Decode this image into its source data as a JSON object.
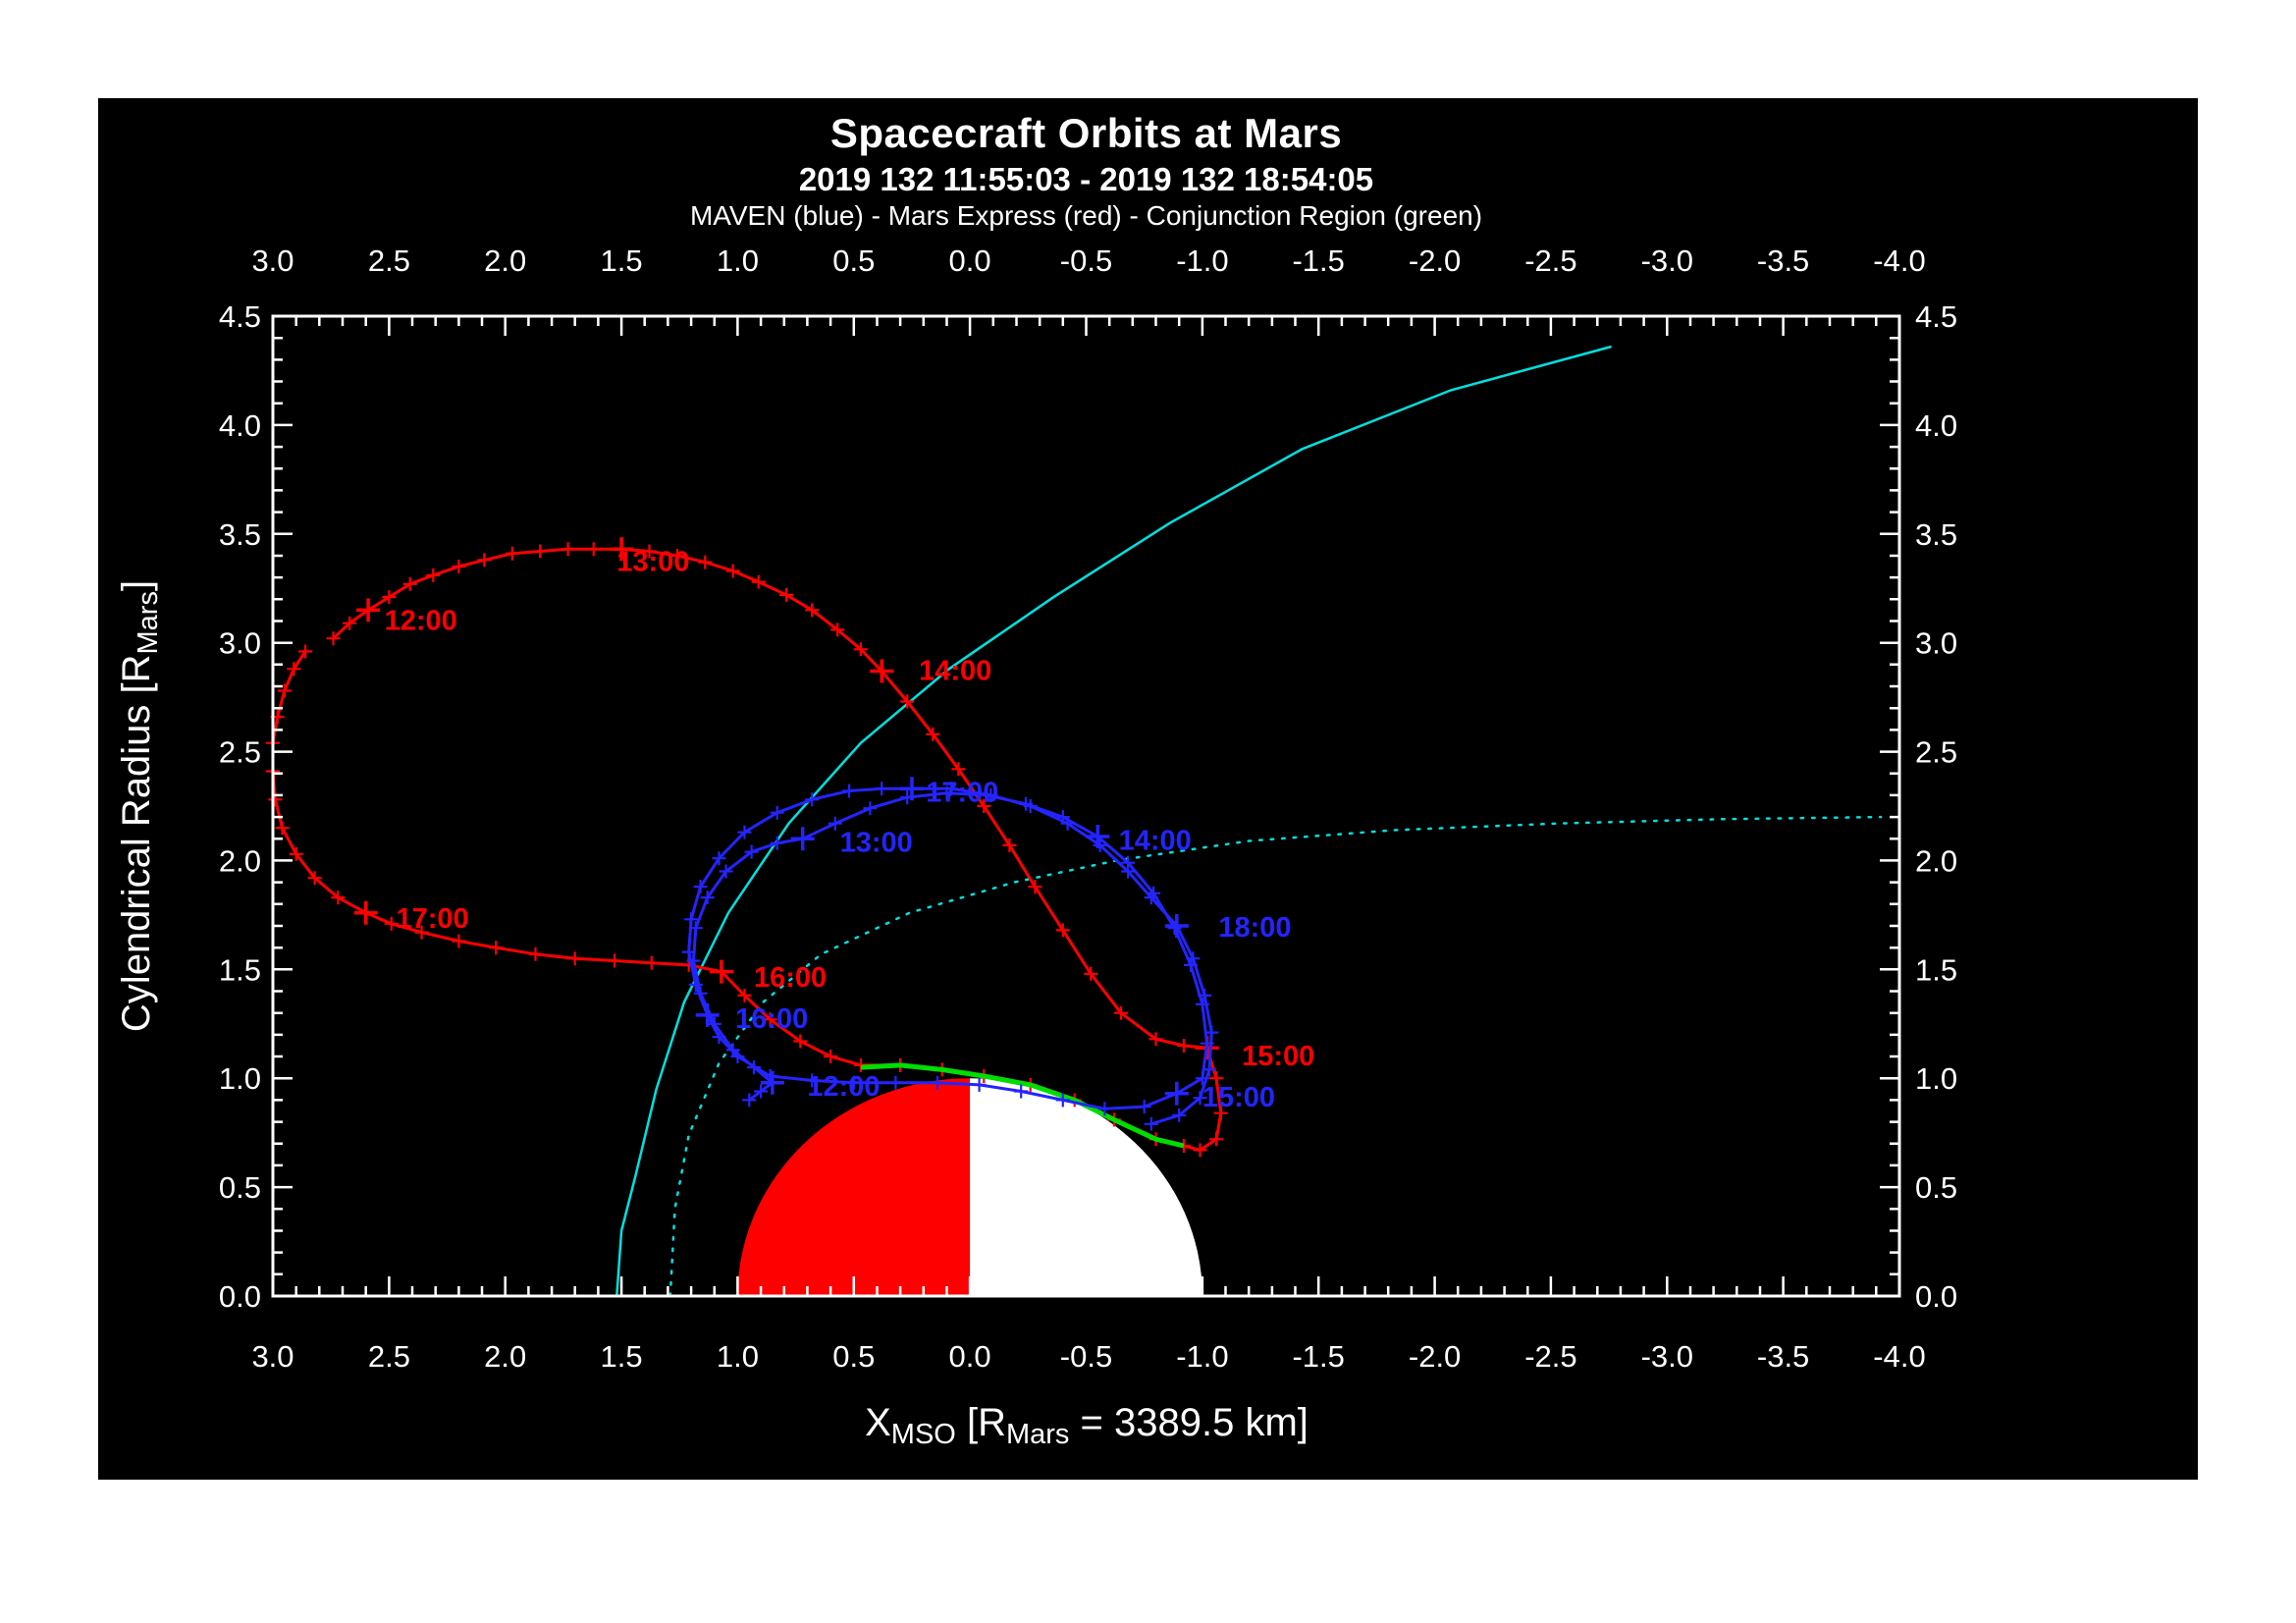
{
  "header": {
    "title": "Spacecraft Orbits at Mars",
    "subtitle": "2019 132 11:55:03 - 2019 132 18:54:05",
    "legend": "MAVEN (blue) - Mars Express (red) - Conjunction Region (green)"
  },
  "chart_data": {
    "type": "line",
    "title": "Spacecraft Orbits at Mars",
    "subtitle": "2019 132 11:55:03 - 2019 132 18:54:05",
    "legend": "MAVEN (blue) - Mars Express (red) - Conjunction Region (green)",
    "xlabel_parts": [
      {
        "t": "X"
      },
      {
        "t": "MSO",
        "sub": true
      },
      {
        "t": " [R"
      },
      {
        "t": "Mars",
        "sub": true
      },
      {
        "t": " = 3389.5 km]"
      }
    ],
    "ylabel_parts": [
      {
        "t": "Cylendrical Radius [R"
      },
      {
        "t": "Mars",
        "sub": true
      },
      {
        "t": "]"
      }
    ],
    "xlim": [
      3.0,
      -4.0
    ],
    "ylim": [
      0.0,
      4.5
    ],
    "xticks": [
      3.0,
      2.5,
      2.0,
      1.5,
      1.0,
      0.5,
      0.0,
      -0.5,
      -1.0,
      -1.5,
      -2.0,
      -2.5,
      -3.0,
      -3.5,
      -4.0
    ],
    "yticks": [
      0.0,
      0.5,
      1.0,
      1.5,
      2.0,
      2.5,
      3.0,
      3.5,
      4.0,
      4.5
    ],
    "minor_tick_step": 0.1,
    "grid": false,
    "background_color": "#000000",
    "axis_color": "#ffffff",
    "mars": {
      "center": [
        0,
        0
      ],
      "radius": 1.0,
      "dayside_color": "#ff0000",
      "nightside_color": "#ffffff"
    },
    "series": [
      {
        "name": "bow-shock",
        "color": "#00e0e0",
        "width": 2.5,
        "style": "solid",
        "markers": false,
        "points": [
          [
            1.52,
            0.0
          ],
          [
            1.5,
            0.3
          ],
          [
            1.44,
            0.55
          ],
          [
            1.35,
            0.95
          ],
          [
            1.23,
            1.35
          ],
          [
            1.04,
            1.76
          ],
          [
            0.78,
            2.17
          ],
          [
            0.47,
            2.54
          ],
          [
            0.09,
            2.88
          ],
          [
            -0.36,
            3.21
          ],
          [
            -0.86,
            3.55
          ],
          [
            -1.43,
            3.89
          ],
          [
            -2.07,
            4.16
          ],
          [
            -2.76,
            4.36
          ]
        ]
      },
      {
        "name": "magnetic-pileup-boundary",
        "color": "#00e0e0",
        "width": 2.5,
        "style": "dotted",
        "markers": false,
        "points": [
          [
            1.29,
            0.0
          ],
          [
            1.27,
            0.4
          ],
          [
            1.21,
            0.74
          ],
          [
            1.08,
            1.07
          ],
          [
            0.89,
            1.35
          ],
          [
            0.64,
            1.57
          ],
          [
            0.26,
            1.76
          ],
          [
            -0.19,
            1.9
          ],
          [
            -0.63,
            2.0
          ],
          [
            -1.2,
            2.09
          ],
          [
            -1.83,
            2.14
          ],
          [
            -2.53,
            2.17
          ],
          [
            -3.23,
            2.19
          ],
          [
            -3.92,
            2.2
          ]
        ]
      },
      {
        "name": "mars-express-orbit",
        "color": "#ff0000",
        "width": 3,
        "style": "solid",
        "markers": true,
        "points": [
          [
            2.74,
            3.02
          ],
          [
            2.67,
            3.09
          ],
          [
            2.59,
            3.15
          ],
          [
            2.5,
            3.21
          ],
          [
            2.41,
            3.27
          ],
          [
            2.31,
            3.31
          ],
          [
            2.2,
            3.35
          ],
          [
            2.09,
            3.38
          ],
          [
            1.97,
            3.41
          ],
          [
            1.85,
            3.42
          ],
          [
            1.73,
            3.43
          ],
          [
            1.62,
            3.43
          ],
          [
            1.5,
            3.43
          ],
          [
            1.38,
            3.42
          ],
          [
            1.26,
            3.4
          ],
          [
            1.14,
            3.37
          ],
          [
            1.02,
            3.33
          ],
          [
            0.91,
            3.28
          ],
          [
            0.79,
            3.22
          ],
          [
            0.68,
            3.15
          ],
          [
            0.57,
            3.06
          ],
          [
            0.47,
            2.97
          ],
          [
            0.38,
            2.87
          ],
          [
            0.27,
            2.73
          ],
          [
            0.16,
            2.58
          ],
          [
            0.05,
            2.42
          ],
          [
            -0.06,
            2.25
          ],
          [
            -0.17,
            2.07
          ],
          [
            -0.28,
            1.88
          ],
          [
            -0.4,
            1.68
          ],
          [
            -0.52,
            1.48
          ],
          [
            -0.65,
            1.3
          ],
          [
            -0.8,
            1.18
          ],
          [
            -0.92,
            1.15
          ],
          [
            -1.02,
            1.14
          ],
          [
            -1.06,
            1.0
          ],
          [
            -1.08,
            0.84
          ],
          [
            -1.06,
            0.72
          ],
          [
            -0.99,
            0.67
          ],
          [
            -0.92,
            0.69
          ],
          [
            -0.8,
            0.72
          ],
          [
            -0.62,
            0.81
          ],
          [
            -0.45,
            0.9
          ],
          [
            -0.26,
            0.97
          ],
          [
            -0.06,
            1.01
          ],
          [
            0.12,
            1.04
          ],
          [
            0.3,
            1.06
          ],
          [
            0.47,
            1.06
          ],
          [
            0.6,
            1.1
          ],
          [
            0.73,
            1.17
          ],
          [
            0.86,
            1.27
          ],
          [
            0.97,
            1.38
          ],
          [
            1.07,
            1.49
          ],
          [
            1.21,
            1.52
          ],
          [
            1.37,
            1.53
          ],
          [
            1.53,
            1.54
          ],
          [
            1.7,
            1.55
          ],
          [
            1.87,
            1.57
          ],
          [
            2.04,
            1.6
          ],
          [
            2.2,
            1.63
          ],
          [
            2.36,
            1.67
          ],
          [
            2.49,
            1.71
          ],
          [
            2.6,
            1.76
          ],
          [
            2.72,
            1.83
          ],
          [
            2.82,
            1.92
          ],
          [
            2.9,
            2.03
          ],
          [
            2.96,
            2.15
          ],
          [
            2.99,
            2.28
          ],
          [
            3.0,
            2.41
          ],
          [
            3.0,
            2.54
          ],
          [
            2.98,
            2.66
          ],
          [
            2.95,
            2.78
          ],
          [
            2.91,
            2.88
          ],
          [
            2.86,
            2.96
          ]
        ],
        "hours": [
          {
            "t": "12:00",
            "x": 2.59,
            "y": 3.15,
            "lx": 2.52,
            "ly": 3.06
          },
          {
            "t": "13:00",
            "x": 1.5,
            "y": 3.43,
            "lx": 1.52,
            "ly": 3.33
          },
          {
            "t": "14:00",
            "x": 0.38,
            "y": 2.87,
            "lx": 0.22,
            "ly": 2.83
          },
          {
            "t": "15:00",
            "x": -1.02,
            "y": 1.14,
            "lx": -1.17,
            "ly": 1.06
          },
          {
            "t": "16:00",
            "x": 1.07,
            "y": 1.49,
            "lx": 0.93,
            "ly": 1.42
          },
          {
            "t": "17:00",
            "x": 2.6,
            "y": 1.76,
            "lx": 2.47,
            "ly": 1.69
          }
        ]
      },
      {
        "name": "conjunction-region",
        "color": "#00dd00",
        "width": 5,
        "style": "solid",
        "markers": false,
        "points": [
          [
            0.47,
            1.05
          ],
          [
            0.3,
            1.06
          ],
          [
            0.12,
            1.04
          ],
          [
            -0.06,
            1.01
          ],
          [
            -0.26,
            0.97
          ],
          [
            -0.45,
            0.9
          ],
          [
            -0.62,
            0.81
          ],
          [
            -0.8,
            0.72
          ],
          [
            -0.92,
            0.69
          ]
        ]
      },
      {
        "name": "maven-orbit",
        "color": "#2424ff",
        "width": 3,
        "style": "solid",
        "markers": true,
        "points": [
          [
            0.95,
            0.9
          ],
          [
            0.9,
            0.94
          ],
          [
            0.85,
            0.98
          ],
          [
            0.93,
            1.05
          ],
          [
            1.02,
            1.13
          ],
          [
            1.1,
            1.25
          ],
          [
            1.16,
            1.39
          ],
          [
            1.19,
            1.54
          ],
          [
            1.18,
            1.69
          ],
          [
            1.13,
            1.83
          ],
          [
            1.05,
            1.95
          ],
          [
            0.94,
            2.04
          ],
          [
            0.83,
            2.08
          ],
          [
            0.72,
            2.1
          ],
          [
            0.58,
            2.17
          ],
          [
            0.43,
            2.24
          ],
          [
            0.27,
            2.29
          ],
          [
            0.1,
            2.31
          ],
          [
            -0.07,
            2.3
          ],
          [
            -0.24,
            2.26
          ],
          [
            -0.4,
            2.2
          ],
          [
            -0.55,
            2.11
          ],
          [
            -0.68,
            1.99
          ],
          [
            -0.79,
            1.85
          ],
          [
            -0.88,
            1.69
          ],
          [
            -0.95,
            1.52
          ],
          [
            -1.0,
            1.34
          ],
          [
            -1.02,
            1.16
          ],
          [
            -1.0,
            1.0
          ],
          [
            -0.89,
            0.93
          ],
          [
            -0.75,
            0.87
          ],
          [
            -0.58,
            0.86
          ],
          [
            -0.4,
            0.9
          ],
          [
            -0.22,
            0.94
          ],
          [
            -0.04,
            0.97
          ],
          [
            0.14,
            0.98
          ],
          [
            0.32,
            0.98
          ],
          [
            0.5,
            0.98
          ],
          [
            0.68,
            0.99
          ],
          [
            0.86,
            1.01
          ],
          [
            1.0,
            1.1
          ],
          [
            1.08,
            1.19
          ],
          [
            1.13,
            1.29
          ],
          [
            1.18,
            1.43
          ],
          [
            1.21,
            1.58
          ],
          [
            1.2,
            1.73
          ],
          [
            1.16,
            1.88
          ],
          [
            1.08,
            2.01
          ],
          [
            0.97,
            2.13
          ],
          [
            0.83,
            2.22
          ],
          [
            0.68,
            2.28
          ],
          [
            0.52,
            2.32
          ],
          [
            0.38,
            2.33
          ],
          [
            0.25,
            2.33
          ],
          [
            0.08,
            2.33
          ],
          [
            -0.09,
            2.3
          ],
          [
            -0.26,
            2.25
          ],
          [
            -0.42,
            2.17
          ],
          [
            -0.56,
            2.07
          ],
          [
            -0.68,
            1.95
          ],
          [
            -0.78,
            1.83
          ],
          [
            -0.89,
            1.7
          ],
          [
            -0.96,
            1.55
          ],
          [
            -1.01,
            1.38
          ],
          [
            -1.04,
            1.21
          ],
          [
            -1.03,
            1.04
          ],
          [
            -0.99,
            0.91
          ],
          [
            -0.9,
            0.83
          ],
          [
            -0.78,
            0.79
          ]
        ],
        "hours": [
          {
            "t": "12:00",
            "x": 0.85,
            "y": 0.98,
            "lx": 0.7,
            "ly": 0.92
          },
          {
            "t": "13:00",
            "x": 0.72,
            "y": 2.1,
            "lx": 0.56,
            "ly": 2.04
          },
          {
            "t": "14:00",
            "x": -0.55,
            "y": 2.11,
            "lx": -0.64,
            "ly": 2.05
          },
          {
            "t": "15:00",
            "x": -0.89,
            "y": 0.93,
            "lx": -1.0,
            "ly": 0.87
          },
          {
            "t": "16:00",
            "x": 1.13,
            "y": 1.29,
            "lx": 1.01,
            "ly": 1.23
          },
          {
            "t": "17:00",
            "x": 0.25,
            "y": 2.33,
            "lx": 0.19,
            "ly": 2.27
          },
          {
            "t": "18:00",
            "x": -0.89,
            "y": 1.7,
            "lx": -1.07,
            "ly": 1.65
          }
        ]
      }
    ]
  }
}
